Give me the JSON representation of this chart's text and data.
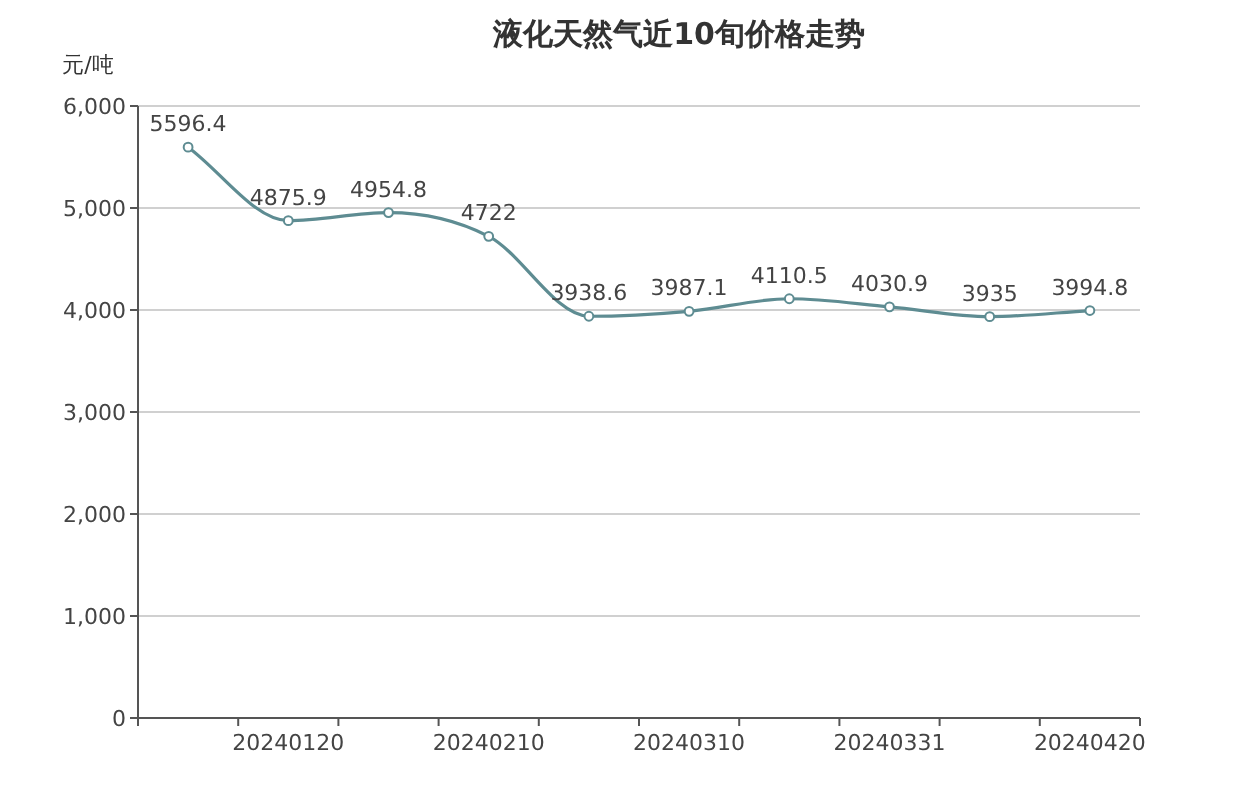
{
  "chart_data": {
    "type": "line",
    "title": "液化天然气近10旬价格走势",
    "ylabel": "元/吨",
    "categories": [
      null,
      "20240120",
      null,
      "20240210",
      null,
      "20240310",
      null,
      "20240331",
      null,
      "20240420"
    ],
    "series": [
      {
        "color": "#5e8c92",
        "values": [
          5596.4,
          4875.9,
          4954.8,
          4722,
          3938.6,
          3987.1,
          4110.5,
          4030.9,
          3935,
          3994.8
        ]
      }
    ],
    "ylim": [
      0,
      6000
    ],
    "yticks": [
      0,
      {
        "value": 1000,
        "label": "1,000"
      },
      {
        "value": 2000,
        "label": "2,000"
      },
      {
        "value": 3000,
        "label": "3,000"
      },
      {
        "value": 4000,
        "label": "4,000"
      },
      {
        "value": 5000,
        "label": "5,000"
      },
      {
        "value": 6000,
        "label": "6,000"
      }
    ],
    "grid": "y",
    "data_labels": true,
    "marker": "circle",
    "line_style": "solid"
  }
}
